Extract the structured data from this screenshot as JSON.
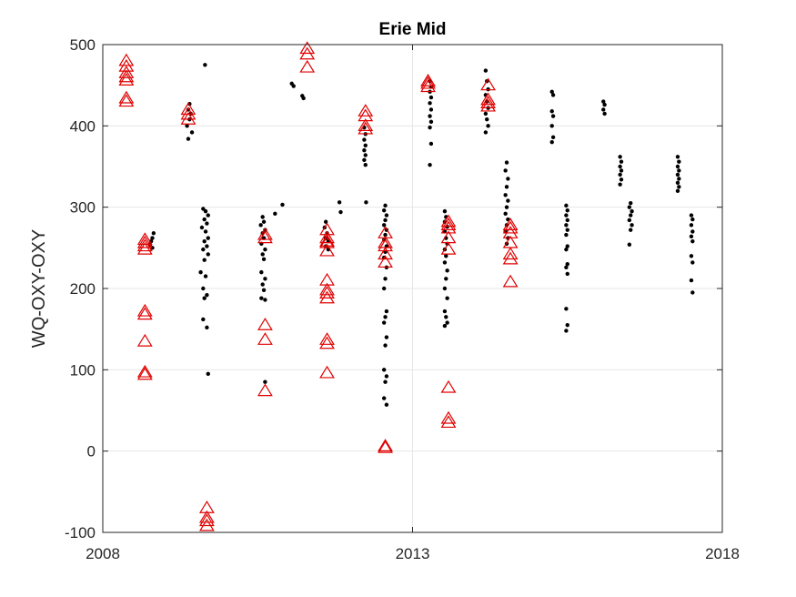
{
  "chart_data": {
    "type": "scatter",
    "title": "Erie Mid",
    "xlabel": "",
    "ylabel": "WQ-OXY-OXY",
    "xlim": [
      2008,
      2018
    ],
    "ylim": [
      -100,
      500
    ],
    "x_ticks": [
      2008,
      2013,
      2018
    ],
    "x_tick_labels": [
      "2008",
      "2013",
      "2018"
    ],
    "y_ticks": [
      -100,
      0,
      100,
      200,
      300,
      400,
      500
    ],
    "y_tick_labels": [
      "-100",
      "0",
      "100",
      "200",
      "300",
      "400",
      "500"
    ],
    "grid": true,
    "legend": "none",
    "series": [
      {
        "marker": "dot",
        "color": "#000000",
        "points": [
          [
            2008.82,
            268
          ],
          [
            2008.8,
            262
          ],
          [
            2008.78,
            258
          ],
          [
            2008.76,
            254
          ],
          [
            2008.8,
            250
          ],
          [
            2009.4,
            427
          ],
          [
            2009.38,
            420
          ],
          [
            2009.42,
            415
          ],
          [
            2009.4,
            408
          ],
          [
            2009.36,
            400
          ],
          [
            2009.44,
            392
          ],
          [
            2009.38,
            384
          ],
          [
            2009.65,
            475
          ],
          [
            2009.62,
            298
          ],
          [
            2009.66,
            295
          ],
          [
            2009.7,
            290
          ],
          [
            2009.64,
            285
          ],
          [
            2009.68,
            280
          ],
          [
            2009.6,
            275
          ],
          [
            2009.66,
            270
          ],
          [
            2009.7,
            262
          ],
          [
            2009.64,
            258
          ],
          [
            2009.68,
            252
          ],
          [
            2009.62,
            248
          ],
          [
            2009.7,
            242
          ],
          [
            2009.64,
            235
          ],
          [
            2009.58,
            220
          ],
          [
            2009.66,
            215
          ],
          [
            2009.62,
            200
          ],
          [
            2009.68,
            192
          ],
          [
            2009.64,
            188
          ],
          [
            2009.62,
            162
          ],
          [
            2009.68,
            152
          ],
          [
            2009.7,
            95
          ],
          [
            2010.58,
            288
          ],
          [
            2010.6,
            282
          ],
          [
            2010.55,
            278
          ],
          [
            2010.62,
            272
          ],
          [
            2010.58,
            268
          ],
          [
            2010.6,
            262
          ],
          [
            2010.56,
            255
          ],
          [
            2010.62,
            248
          ],
          [
            2010.58,
            242
          ],
          [
            2010.6,
            236
          ],
          [
            2010.56,
            220
          ],
          [
            2010.62,
            212
          ],
          [
            2010.58,
            205
          ],
          [
            2010.6,
            198
          ],
          [
            2010.56,
            188
          ],
          [
            2010.62,
            186
          ],
          [
            2010.62,
            85
          ],
          [
            2010.78,
            292
          ],
          [
            2010.9,
            303
          ],
          [
            2011.05,
            452
          ],
          [
            2011.08,
            449
          ],
          [
            2011.22,
            437
          ],
          [
            2011.24,
            434
          ],
          [
            2011.6,
            282
          ],
          [
            2011.58,
            275
          ],
          [
            2011.62,
            268
          ],
          [
            2011.6,
            262
          ],
          [
            2011.64,
            258
          ],
          [
            2011.6,
            252
          ],
          [
            2011.64,
            248
          ],
          [
            2011.82,
            306
          ],
          [
            2011.84,
            294
          ],
          [
            2012.22,
            398
          ],
          [
            2012.24,
            390
          ],
          [
            2012.22,
            383
          ],
          [
            2012.24,
            376
          ],
          [
            2012.22,
            370
          ],
          [
            2012.24,
            364
          ],
          [
            2012.22,
            358
          ],
          [
            2012.24,
            352
          ],
          [
            2012.25,
            306
          ],
          [
            2012.56,
            302
          ],
          [
            2012.54,
            296
          ],
          [
            2012.58,
            290
          ],
          [
            2012.56,
            284
          ],
          [
            2012.54,
            278
          ],
          [
            2012.58,
            272
          ],
          [
            2012.56,
            266
          ],
          [
            2012.54,
            260
          ],
          [
            2012.58,
            252
          ],
          [
            2012.56,
            245
          ],
          [
            2012.54,
            238
          ],
          [
            2012.58,
            226
          ],
          [
            2012.56,
            212
          ],
          [
            2012.54,
            200
          ],
          [
            2012.58,
            172
          ],
          [
            2012.56,
            165
          ],
          [
            2012.54,
            158
          ],
          [
            2012.58,
            140
          ],
          [
            2012.56,
            130
          ],
          [
            2012.54,
            100
          ],
          [
            2012.58,
            92
          ],
          [
            2012.56,
            85
          ],
          [
            2012.54,
            65
          ],
          [
            2012.58,
            57
          ],
          [
            2013.28,
            455
          ],
          [
            2013.3,
            448
          ],
          [
            2013.28,
            442
          ],
          [
            2013.3,
            435
          ],
          [
            2013.28,
            428
          ],
          [
            2013.3,
            420
          ],
          [
            2013.28,
            412
          ],
          [
            2013.3,
            405
          ],
          [
            2013.28,
            398
          ],
          [
            2013.3,
            378
          ],
          [
            2013.28,
            352
          ],
          [
            2013.52,
            295
          ],
          [
            2013.54,
            288
          ],
          [
            2013.52,
            282
          ],
          [
            2013.56,
            276
          ],
          [
            2013.52,
            270
          ],
          [
            2013.54,
            262
          ],
          [
            2013.56,
            255
          ],
          [
            2013.52,
            248
          ],
          [
            2013.54,
            240
          ],
          [
            2013.52,
            232
          ],
          [
            2013.56,
            222
          ],
          [
            2013.54,
            212
          ],
          [
            2013.52,
            200
          ],
          [
            2013.56,
            188
          ],
          [
            2013.52,
            172
          ],
          [
            2013.54,
            165
          ],
          [
            2013.56,
            158
          ],
          [
            2013.52,
            154
          ],
          [
            2014.18,
            468
          ],
          [
            2014.2,
            455
          ],
          [
            2014.22,
            445
          ],
          [
            2014.18,
            438
          ],
          [
            2014.2,
            430
          ],
          [
            2014.22,
            422
          ],
          [
            2014.18,
            415
          ],
          [
            2014.2,
            408
          ],
          [
            2014.22,
            400
          ],
          [
            2014.18,
            392
          ],
          [
            2014.52,
            355
          ],
          [
            2014.5,
            345
          ],
          [
            2014.54,
            335
          ],
          [
            2014.52,
            325
          ],
          [
            2014.5,
            315
          ],
          [
            2014.54,
            308
          ],
          [
            2014.52,
            300
          ],
          [
            2014.5,
            292
          ],
          [
            2014.54,
            285
          ],
          [
            2014.52,
            278
          ],
          [
            2014.5,
            270
          ],
          [
            2014.54,
            262
          ],
          [
            2014.52,
            255
          ],
          [
            2015.25,
            442
          ],
          [
            2015.27,
            438
          ],
          [
            2015.25,
            418
          ],
          [
            2015.27,
            412
          ],
          [
            2015.25,
            400
          ],
          [
            2015.27,
            386
          ],
          [
            2015.25,
            380
          ],
          [
            2015.48,
            302
          ],
          [
            2015.5,
            296
          ],
          [
            2015.48,
            290
          ],
          [
            2015.5,
            284
          ],
          [
            2015.48,
            278
          ],
          [
            2015.5,
            272
          ],
          [
            2015.48,
            266
          ],
          [
            2015.5,
            252
          ],
          [
            2015.48,
            248
          ],
          [
            2015.5,
            230
          ],
          [
            2015.48,
            226
          ],
          [
            2015.5,
            218
          ],
          [
            2015.48,
            175
          ],
          [
            2015.5,
            155
          ],
          [
            2015.48,
            148
          ],
          [
            2016.08,
            430
          ],
          [
            2016.1,
            426
          ],
          [
            2016.08,
            420
          ],
          [
            2016.1,
            415
          ],
          [
            2016.35,
            362
          ],
          [
            2016.37,
            356
          ],
          [
            2016.35,
            350
          ],
          [
            2016.37,
            345
          ],
          [
            2016.35,
            340
          ],
          [
            2016.37,
            334
          ],
          [
            2016.35,
            328
          ],
          [
            2016.52,
            305
          ],
          [
            2016.5,
            300
          ],
          [
            2016.54,
            295
          ],
          [
            2016.52,
            290
          ],
          [
            2016.5,
            284
          ],
          [
            2016.54,
            278
          ],
          [
            2016.52,
            272
          ],
          [
            2016.5,
            254
          ],
          [
            2017.28,
            362
          ],
          [
            2017.3,
            356
          ],
          [
            2017.28,
            350
          ],
          [
            2017.3,
            345
          ],
          [
            2017.28,
            340
          ],
          [
            2017.3,
            335
          ],
          [
            2017.28,
            330
          ],
          [
            2017.3,
            325
          ],
          [
            2017.28,
            320
          ],
          [
            2017.5,
            290
          ],
          [
            2017.52,
            285
          ],
          [
            2017.5,
            278
          ],
          [
            2017.52,
            270
          ],
          [
            2017.5,
            264
          ],
          [
            2017.52,
            258
          ],
          [
            2017.5,
            240
          ],
          [
            2017.52,
            232
          ],
          [
            2017.5,
            210
          ],
          [
            2017.52,
            195
          ]
        ]
      },
      {
        "marker": "triangle",
        "color": "#e00000",
        "points": [
          [
            2008.38,
            480
          ],
          [
            2008.38,
            473
          ],
          [
            2008.38,
            465
          ],
          [
            2008.38,
            460
          ],
          [
            2008.38,
            456
          ],
          [
            2008.38,
            434
          ],
          [
            2008.38,
            430
          ],
          [
            2008.68,
            260
          ],
          [
            2008.68,
            256
          ],
          [
            2008.68,
            252
          ],
          [
            2008.68,
            248
          ],
          [
            2008.68,
            172
          ],
          [
            2008.68,
            168
          ],
          [
            2008.68,
            135
          ],
          [
            2008.68,
            97
          ],
          [
            2008.68,
            94
          ],
          [
            2009.38,
            420
          ],
          [
            2009.38,
            414
          ],
          [
            2009.38,
            408
          ],
          [
            2009.68,
            -70
          ],
          [
            2009.68,
            -82
          ],
          [
            2009.68,
            -86
          ],
          [
            2009.68,
            -92
          ],
          [
            2010.62,
            266
          ],
          [
            2010.62,
            262
          ],
          [
            2010.62,
            155
          ],
          [
            2010.62,
            137
          ],
          [
            2010.62,
            74
          ],
          [
            2011.3,
            495
          ],
          [
            2011.3,
            488
          ],
          [
            2011.3,
            472
          ],
          [
            2011.62,
            272
          ],
          [
            2011.62,
            262
          ],
          [
            2011.62,
            258
          ],
          [
            2011.62,
            256
          ],
          [
            2011.62,
            246
          ],
          [
            2011.62,
            210
          ],
          [
            2011.62,
            198
          ],
          [
            2011.62,
            194
          ],
          [
            2011.62,
            188
          ],
          [
            2011.62,
            137
          ],
          [
            2011.62,
            132
          ],
          [
            2011.62,
            96
          ],
          [
            2012.24,
            418
          ],
          [
            2012.24,
            412
          ],
          [
            2012.24,
            400
          ],
          [
            2012.24,
            396
          ],
          [
            2012.56,
            268
          ],
          [
            2012.56,
            256
          ],
          [
            2012.56,
            252
          ],
          [
            2012.56,
            242
          ],
          [
            2012.56,
            232
          ],
          [
            2012.56,
            6
          ],
          [
            2012.56,
            4
          ],
          [
            2013.25,
            455
          ],
          [
            2013.25,
            452
          ],
          [
            2013.25,
            448
          ],
          [
            2013.58,
            282
          ],
          [
            2013.58,
            278
          ],
          [
            2013.58,
            274
          ],
          [
            2013.58,
            262
          ],
          [
            2013.58,
            248
          ],
          [
            2013.58,
            78
          ],
          [
            2013.58,
            40
          ],
          [
            2013.58,
            35
          ],
          [
            2014.22,
            450
          ],
          [
            2014.22,
            432
          ],
          [
            2014.22,
            428
          ],
          [
            2014.22,
            424
          ],
          [
            2014.58,
            278
          ],
          [
            2014.58,
            274
          ],
          [
            2014.58,
            268
          ],
          [
            2014.58,
            256
          ],
          [
            2014.58,
            242
          ],
          [
            2014.58,
            236
          ],
          [
            2014.58,
            208
          ]
        ]
      }
    ]
  }
}
